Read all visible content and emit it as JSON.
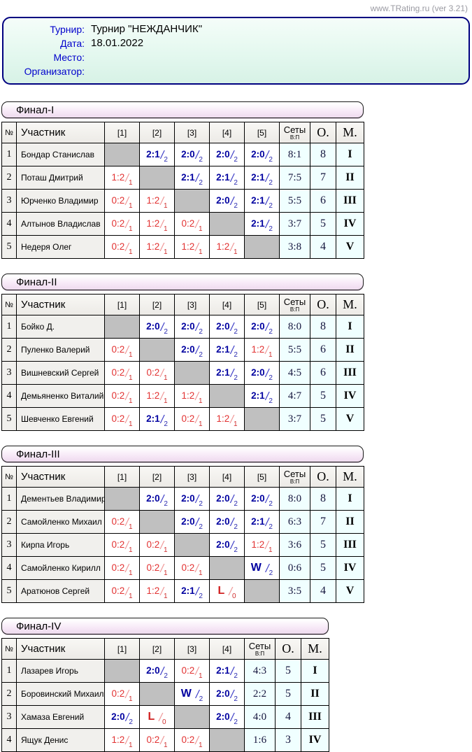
{
  "site_credit": "www.TRating.ru (ver 3.21)",
  "info": {
    "rows": [
      {
        "label": "Турнир:",
        "value": "Турнир \"НЕЖДАНЧИК\""
      },
      {
        "label": "Дата:",
        "value": "18.01.2022"
      },
      {
        "label": "Место:",
        "value": ""
      },
      {
        "label": "Организатор:",
        "value": ""
      }
    ]
  },
  "labels": {
    "num": "№",
    "participant": "Участник",
    "sets": "Сеты",
    "sets_sub": "В:П",
    "points": "О.",
    "place": "М."
  },
  "colors": {
    "win_score": "#0000a0",
    "loss_score": "#e23232",
    "self_cell": "#c0c0c0",
    "highlight_bg": "#f0ffff",
    "info_border": "#000080",
    "label_blue": "#0000cc",
    "credit_gray": "#9a9aa2"
  },
  "tables": [
    {
      "title": "Финал-I",
      "rounds": [
        "[1]",
        "[2]",
        "[3]",
        "[4]",
        "[5]"
      ],
      "rows": [
        {
          "num": "1",
          "name": "Бондар Станислав",
          "cells": [
            {
              "type": "self"
            },
            {
              "type": "win",
              "score": "2:1",
              "pts": "2"
            },
            {
              "type": "win",
              "score": "2:0",
              "pts": "2"
            },
            {
              "type": "win",
              "score": "2:0",
              "pts": "2"
            },
            {
              "type": "win",
              "score": "2:0",
              "pts": "2"
            }
          ],
          "sets": "8:1",
          "points": "8",
          "place": "I"
        },
        {
          "num": "2",
          "name": "Поташ Дмитрий",
          "cells": [
            {
              "type": "loss",
              "score": "1:2",
              "pts": "1"
            },
            {
              "type": "self"
            },
            {
              "type": "win",
              "score": "2:1",
              "pts": "2"
            },
            {
              "type": "win",
              "score": "2:1",
              "pts": "2"
            },
            {
              "type": "win",
              "score": "2:1",
              "pts": "2"
            }
          ],
          "sets": "7:5",
          "points": "7",
          "place": "II"
        },
        {
          "num": "3",
          "name": "Юрченко Владимир",
          "cells": [
            {
              "type": "loss",
              "score": "0:2",
              "pts": "1"
            },
            {
              "type": "loss",
              "score": "1:2",
              "pts": "1"
            },
            {
              "type": "self"
            },
            {
              "type": "win",
              "score": "2:0",
              "pts": "2"
            },
            {
              "type": "win",
              "score": "2:1",
              "pts": "2"
            }
          ],
          "sets": "5:5",
          "points": "6",
          "place": "III"
        },
        {
          "num": "4",
          "name": "Алтынов Владислав",
          "cells": [
            {
              "type": "loss",
              "score": "0:2",
              "pts": "1"
            },
            {
              "type": "loss",
              "score": "1:2",
              "pts": "1"
            },
            {
              "type": "loss",
              "score": "0:2",
              "pts": "1"
            },
            {
              "type": "self"
            },
            {
              "type": "win",
              "score": "2:1",
              "pts": "2"
            }
          ],
          "sets": "3:7",
          "points": "5",
          "place": "IV"
        },
        {
          "num": "5",
          "name": "Недеря Олег",
          "cells": [
            {
              "type": "loss",
              "score": "0:2",
              "pts": "1"
            },
            {
              "type": "loss",
              "score": "1:2",
              "pts": "1"
            },
            {
              "type": "loss",
              "score": "1:2",
              "pts": "1"
            },
            {
              "type": "loss",
              "score": "1:2",
              "pts": "1"
            },
            {
              "type": "self"
            }
          ],
          "sets": "3:8",
          "points": "4",
          "place": "V"
        }
      ]
    },
    {
      "title": "Финал-II",
      "rounds": [
        "[1]",
        "[2]",
        "[3]",
        "[4]",
        "[5]"
      ],
      "rows": [
        {
          "num": "1",
          "name": "Бойко Д.",
          "cells": [
            {
              "type": "self"
            },
            {
              "type": "win",
              "score": "2:0",
              "pts": "2"
            },
            {
              "type": "win",
              "score": "2:0",
              "pts": "2"
            },
            {
              "type": "win",
              "score": "2:0",
              "pts": "2"
            },
            {
              "type": "win",
              "score": "2:0",
              "pts": "2"
            }
          ],
          "sets": "8:0",
          "points": "8",
          "place": "I"
        },
        {
          "num": "2",
          "name": "Пуленко Валерий",
          "cells": [
            {
              "type": "loss",
              "score": "0:2",
              "pts": "1"
            },
            {
              "type": "self"
            },
            {
              "type": "win",
              "score": "2:0",
              "pts": "2"
            },
            {
              "type": "win",
              "score": "2:1",
              "pts": "2"
            },
            {
              "type": "loss",
              "score": "1:2",
              "pts": "1"
            }
          ],
          "sets": "5:5",
          "points": "6",
          "place": "II"
        },
        {
          "num": "3",
          "name": "Вишневский Сергей",
          "cells": [
            {
              "type": "loss",
              "score": "0:2",
              "pts": "1"
            },
            {
              "type": "loss",
              "score": "0:2",
              "pts": "1"
            },
            {
              "type": "self"
            },
            {
              "type": "win",
              "score": "2:1",
              "pts": "2"
            },
            {
              "type": "win",
              "score": "2:0",
              "pts": "2"
            }
          ],
          "sets": "4:5",
          "points": "6",
          "place": "III"
        },
        {
          "num": "4",
          "name": "Демьяненко Виталий",
          "cells": [
            {
              "type": "loss",
              "score": "0:2",
              "pts": "1"
            },
            {
              "type": "loss",
              "score": "1:2",
              "pts": "1"
            },
            {
              "type": "loss",
              "score": "1:2",
              "pts": "1"
            },
            {
              "type": "self"
            },
            {
              "type": "win",
              "score": "2:1",
              "pts": "2"
            }
          ],
          "sets": "4:7",
          "points": "5",
          "place": "IV"
        },
        {
          "num": "5",
          "name": "Шевченко Евгений",
          "cells": [
            {
              "type": "loss",
              "score": "0:2",
              "pts": "1"
            },
            {
              "type": "win",
              "score": "2:1",
              "pts": "2"
            },
            {
              "type": "loss",
              "score": "0:2",
              "pts": "1"
            },
            {
              "type": "loss",
              "score": "1:2",
              "pts": "1"
            },
            {
              "type": "self"
            }
          ],
          "sets": "3:7",
          "points": "5",
          "place": "V"
        }
      ]
    },
    {
      "title": "Финал-III",
      "rounds": [
        "[1]",
        "[2]",
        "[3]",
        "[4]",
        "[5]"
      ],
      "rows": [
        {
          "num": "1",
          "name": "Дементьев Владимир",
          "cells": [
            {
              "type": "self"
            },
            {
              "type": "win",
              "score": "2:0",
              "pts": "2"
            },
            {
              "type": "win",
              "score": "2:0",
              "pts": "2"
            },
            {
              "type": "win",
              "score": "2:0",
              "pts": "2"
            },
            {
              "type": "win",
              "score": "2:0",
              "pts": "2"
            }
          ],
          "sets": "8:0",
          "points": "8",
          "place": "I"
        },
        {
          "num": "2",
          "name": "Самойленко Михаил",
          "cells": [
            {
              "type": "loss",
              "score": "0:2",
              "pts": "1"
            },
            {
              "type": "self"
            },
            {
              "type": "win",
              "score": "2:0",
              "pts": "2"
            },
            {
              "type": "win",
              "score": "2:0",
              "pts": "2"
            },
            {
              "type": "win",
              "score": "2:1",
              "pts": "2"
            }
          ],
          "sets": "6:3",
          "points": "7",
          "place": "II"
        },
        {
          "num": "3",
          "name": "Кирпа Игорь",
          "cells": [
            {
              "type": "loss",
              "score": "0:2",
              "pts": "1"
            },
            {
              "type": "loss",
              "score": "0:2",
              "pts": "1"
            },
            {
              "type": "self"
            },
            {
              "type": "win",
              "score": "2:0",
              "pts": "2"
            },
            {
              "type": "loss",
              "score": "1:2",
              "pts": "1"
            }
          ],
          "sets": "3:6",
          "points": "5",
          "place": "III"
        },
        {
          "num": "4",
          "name": "Самойленко Кирилл",
          "cells": [
            {
              "type": "loss",
              "score": "0:2",
              "pts": "1"
            },
            {
              "type": "loss",
              "score": "0:2",
              "pts": "1"
            },
            {
              "type": "loss",
              "score": "0:2",
              "pts": "1"
            },
            {
              "type": "self"
            },
            {
              "type": "walkover_win",
              "letter": "W",
              "pts": "2"
            }
          ],
          "sets": "0:6",
          "points": "5",
          "place": "IV"
        },
        {
          "num": "5",
          "name": "Аратюнов Сергей",
          "cells": [
            {
              "type": "loss",
              "score": "0:2",
              "pts": "1"
            },
            {
              "type": "loss",
              "score": "1:2",
              "pts": "1"
            },
            {
              "type": "win",
              "score": "2:1",
              "pts": "2"
            },
            {
              "type": "walkover_loss",
              "letter": "L",
              "pts": "0"
            },
            {
              "type": "self"
            }
          ],
          "sets": "3:5",
          "points": "4",
          "place": "V"
        }
      ]
    },
    {
      "title": "Финал-IV",
      "rounds": [
        "[1]",
        "[2]",
        "[3]",
        "[4]"
      ],
      "rows": [
        {
          "num": "1",
          "name": "Лазарев Игорь",
          "cells": [
            {
              "type": "self"
            },
            {
              "type": "win",
              "score": "2:0",
              "pts": "2"
            },
            {
              "type": "loss",
              "score": "0:2",
              "pts": "1"
            },
            {
              "type": "win",
              "score": "2:1",
              "pts": "2"
            }
          ],
          "sets": "4:3",
          "points": "5",
          "place": "I"
        },
        {
          "num": "2",
          "name": "Боровинский Михаил",
          "cells": [
            {
              "type": "loss",
              "score": "0:2",
              "pts": "1"
            },
            {
              "type": "self"
            },
            {
              "type": "walkover_win",
              "letter": "W",
              "pts": "2"
            },
            {
              "type": "win",
              "score": "2:0",
              "pts": "2"
            }
          ],
          "sets": "2:2",
          "points": "5",
          "place": "II"
        },
        {
          "num": "3",
          "name": "Хамаза Евгений",
          "cells": [
            {
              "type": "win",
              "score": "2:0",
              "pts": "2"
            },
            {
              "type": "walkover_loss",
              "letter": "L",
              "pts": "0"
            },
            {
              "type": "self"
            },
            {
              "type": "win",
              "score": "2:0",
              "pts": "2"
            }
          ],
          "sets": "4:0",
          "points": "4",
          "place": "III"
        },
        {
          "num": "4",
          "name": "Ящук Денис",
          "cells": [
            {
              "type": "loss",
              "score": "1:2",
              "pts": "1"
            },
            {
              "type": "loss",
              "score": "0:2",
              "pts": "1"
            },
            {
              "type": "loss",
              "score": "0:2",
              "pts": "1"
            },
            {
              "type": "self"
            }
          ],
          "sets": "1:6",
          "points": "3",
          "place": "IV"
        }
      ]
    }
  ]
}
